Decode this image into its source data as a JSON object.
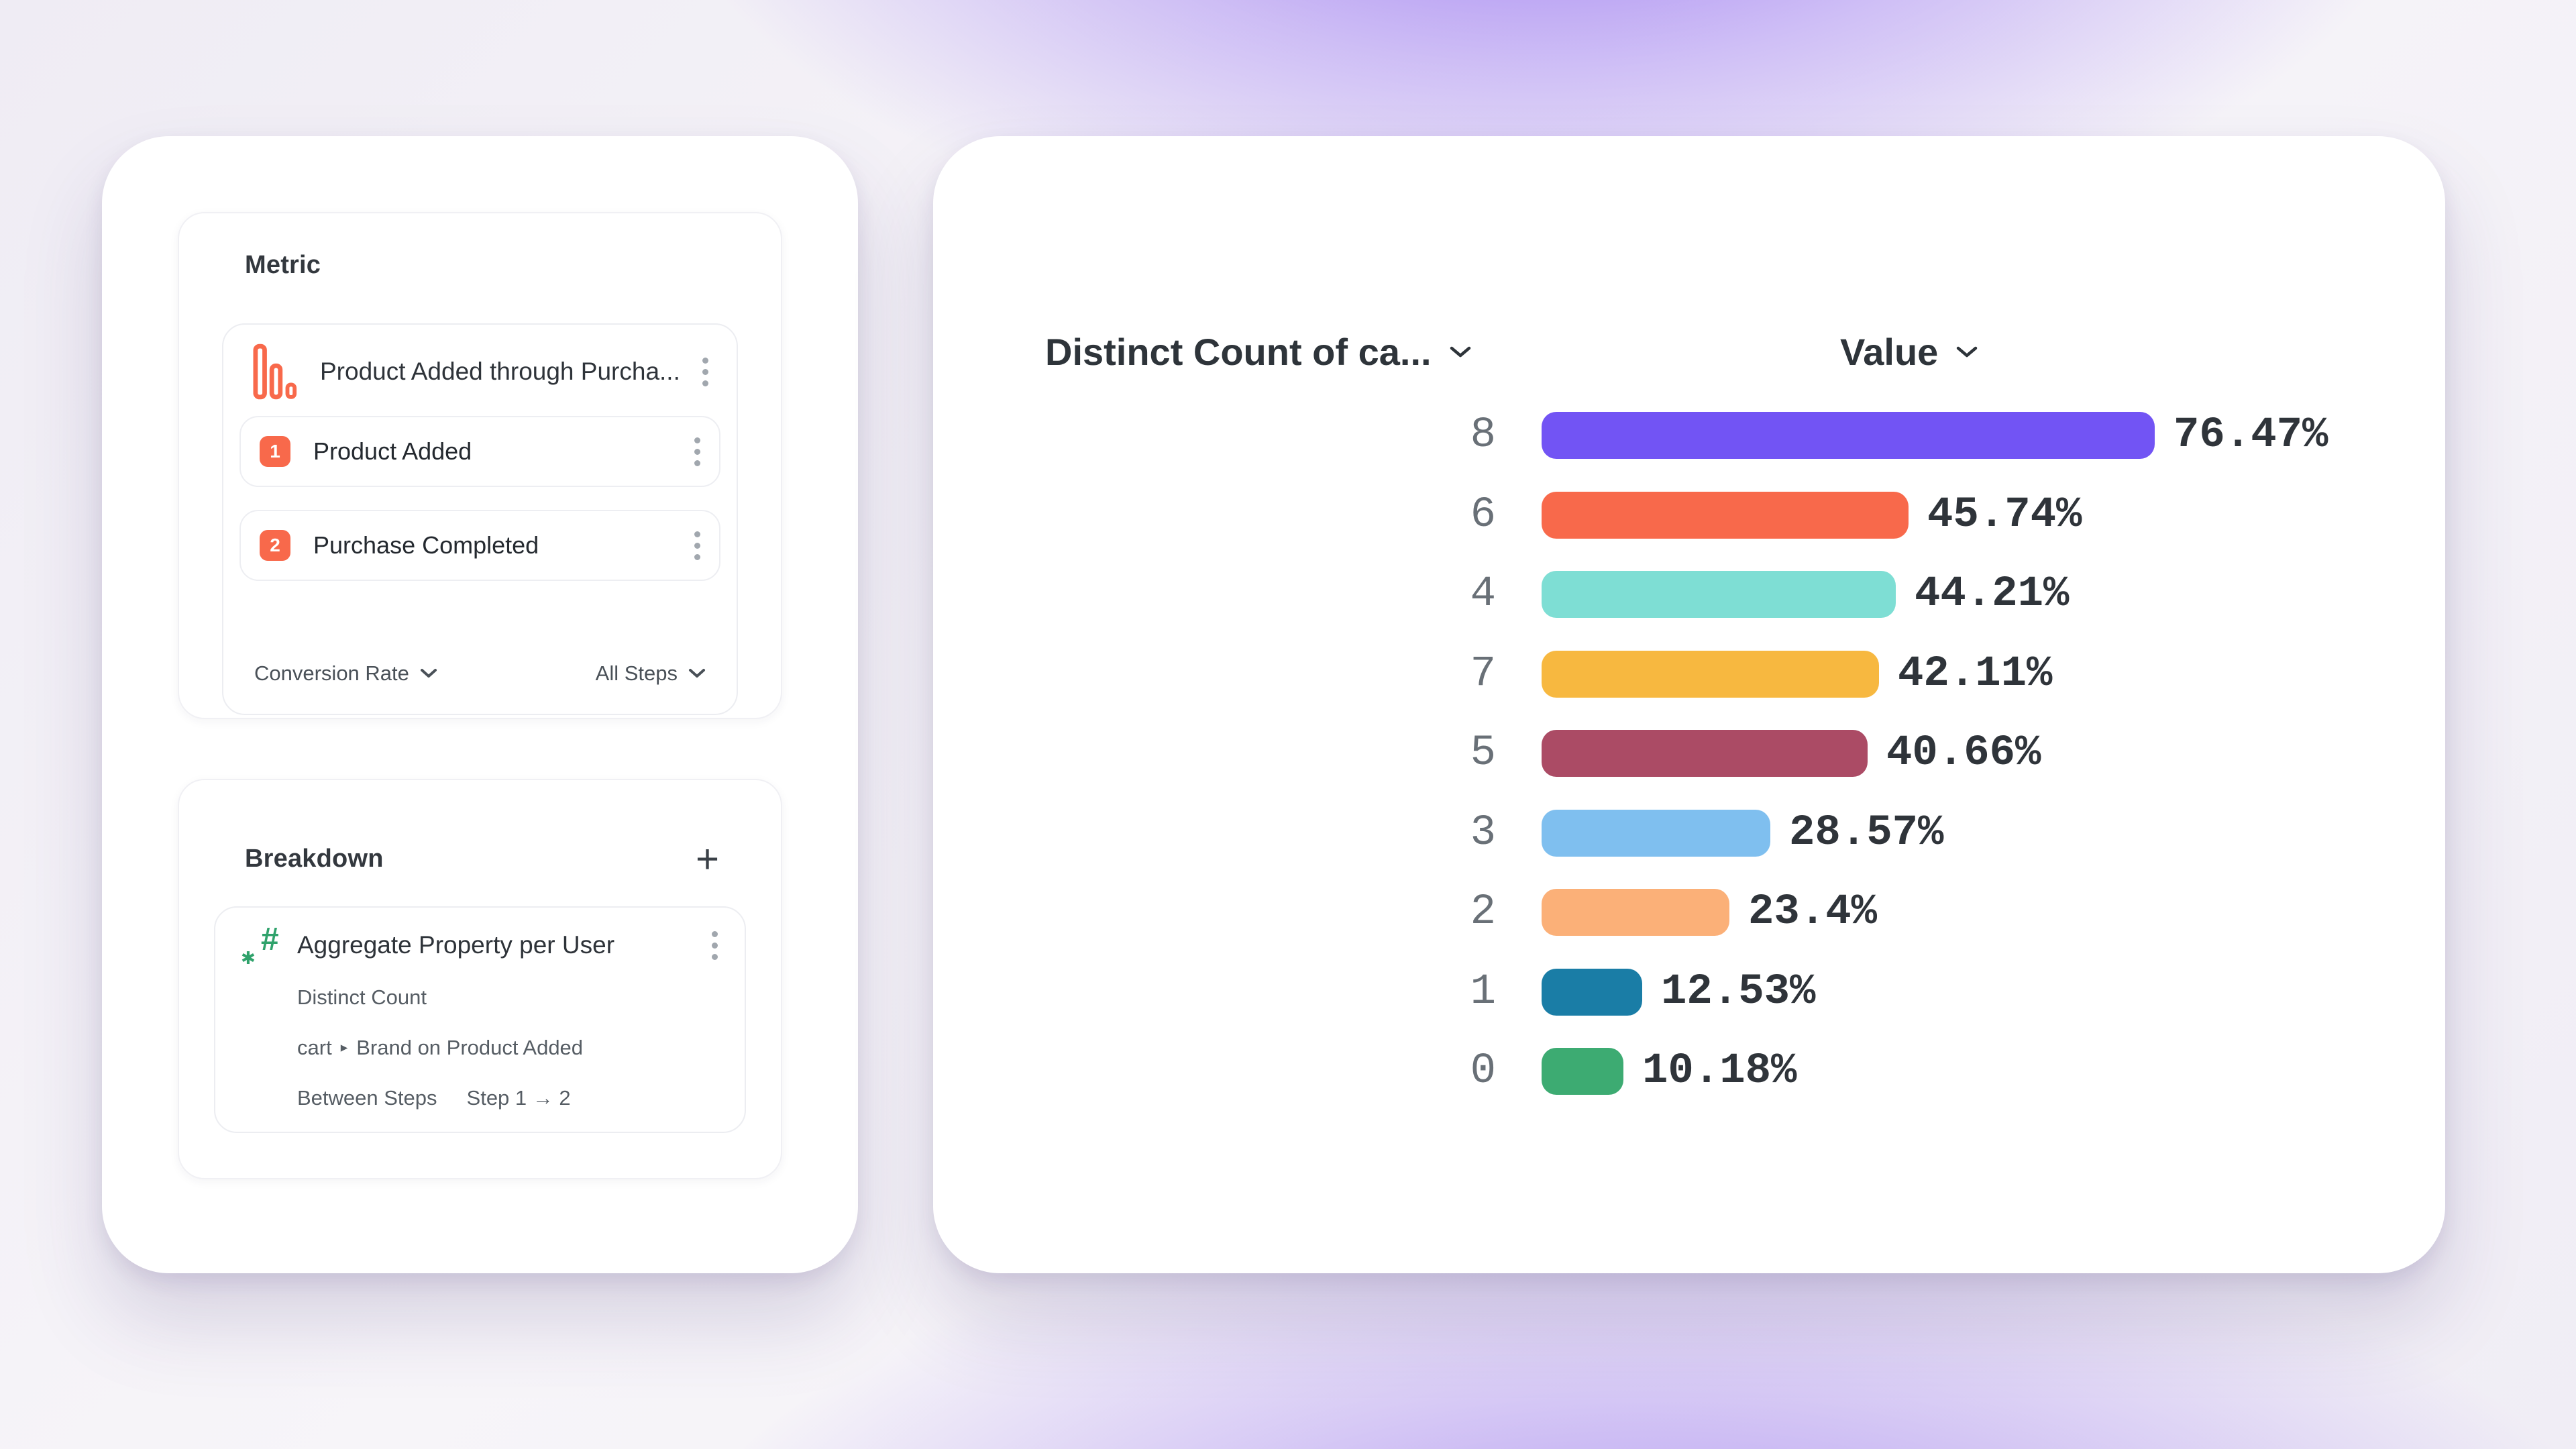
{
  "icons": {
    "funnel_metric": "descending-bars-icon",
    "numeric_property_hash": "#",
    "numeric_property_star": "✱",
    "kebab_menu": "⋮",
    "chevron_down": "⌄",
    "add": "+"
  },
  "colors": {
    "accent_orange": "#F8694B",
    "hash_green": "#2FA26B",
    "panel_white": "#FFFFFF",
    "background_purple": "#A78BF1",
    "text_dark": "#2E343A",
    "text_gray": "#565D64",
    "category_gray": "#697077"
  },
  "metric_panel": {
    "title": "Metric",
    "card": {
      "title": "Product Added through Purcha...",
      "steps": [
        {
          "index": "1",
          "label": "Product Added"
        },
        {
          "index": "2",
          "label": "Purchase Completed"
        }
      ],
      "conversion_dropdown": "Conversion Rate",
      "steps_dropdown": "All Steps"
    }
  },
  "breakdown_panel": {
    "title": "Breakdown",
    "add_label": "+",
    "card": {
      "title": "Aggregate Property per User",
      "aggregation": "Distinct Count",
      "property_object": "cart",
      "property_separator": "▸",
      "property_name": "Brand on Product Added",
      "between_steps_label": "Between Steps",
      "between_steps_value": "Step 1 → 2"
    }
  },
  "chart_panel": {
    "x_dimension_header": "Distinct Count of ca...",
    "value_header": "Value"
  },
  "chart_data": {
    "type": "bar",
    "orientation": "horizontal",
    "title": "",
    "dimension_label": "Distinct Count of ca...",
    "value_label": "Value",
    "categories": [
      "8",
      "6",
      "4",
      "7",
      "5",
      "3",
      "2",
      "1",
      "0"
    ],
    "values": [
      76.47,
      45.74,
      44.21,
      42.11,
      40.66,
      28.57,
      23.4,
      12.53,
      10.18
    ],
    "value_labels": [
      "76.47%",
      "45.74%",
      "44.21%",
      "42.11%",
      "40.66%",
      "28.57%",
      "23.4%",
      "12.53%",
      "10.18%"
    ],
    "unit": "%",
    "xlim": [
      0,
      100
    ],
    "grid": false,
    "legend": false,
    "colors": [
      "#7254F4",
      "#F8694B",
      "#7EDED4",
      "#F7B840",
      "#AB4B65",
      "#7FBFEF",
      "#FBB078",
      "#1A7DA6",
      "#3DAB72"
    ]
  }
}
